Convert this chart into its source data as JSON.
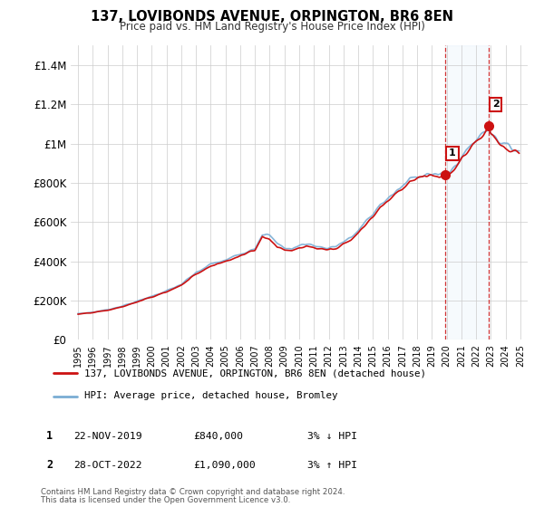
{
  "title": "137, LOVIBONDS AVENUE, ORPINGTON, BR6 8EN",
  "subtitle": "Price paid vs. HM Land Registry's House Price Index (HPI)",
  "legend_line1": "137, LOVIBONDS AVENUE, ORPINGTON, BR6 8EN (detached house)",
  "legend_line2": "HPI: Average price, detached house, Bromley",
  "footer1": "Contains HM Land Registry data © Crown copyright and database right 2024.",
  "footer2": "This data is licensed under the Open Government Licence v3.0.",
  "sale1_label": "1",
  "sale1_date": "22-NOV-2019",
  "sale1_price": "£840,000",
  "sale1_hpi": "3% ↓ HPI",
  "sale2_label": "2",
  "sale2_date": "28-OCT-2022",
  "sale2_price": "£1,090,000",
  "sale2_hpi": "3% ↑ HPI",
  "hpi_color": "#7aadd4",
  "sale_color": "#cc1111",
  "shade_color": "#d0e4f5",
  "background_color": "#ffffff",
  "grid_color": "#cccccc",
  "sale1_x": 2019.89,
  "sale1_y": 840000,
  "sale2_x": 2022.83,
  "sale2_y": 1090000,
  "ylim_min": 0,
  "ylim_max": 1500000,
  "xlim_min": 1994.5,
  "xlim_max": 2025.5,
  "yticks": [
    0,
    200000,
    400000,
    600000,
    800000,
    1000000,
    1200000,
    1400000
  ],
  "ytick_labels": [
    "£0",
    "£200K",
    "£400K",
    "£600K",
    "£800K",
    "£1M",
    "£1.2M",
    "£1.4M"
  ],
  "xticks": [
    1995,
    1996,
    1997,
    1998,
    1999,
    2000,
    2001,
    2002,
    2003,
    2004,
    2005,
    2006,
    2007,
    2008,
    2009,
    2010,
    2011,
    2012,
    2013,
    2014,
    2015,
    2016,
    2017,
    2018,
    2019,
    2020,
    2021,
    2022,
    2023,
    2024,
    2025
  ]
}
